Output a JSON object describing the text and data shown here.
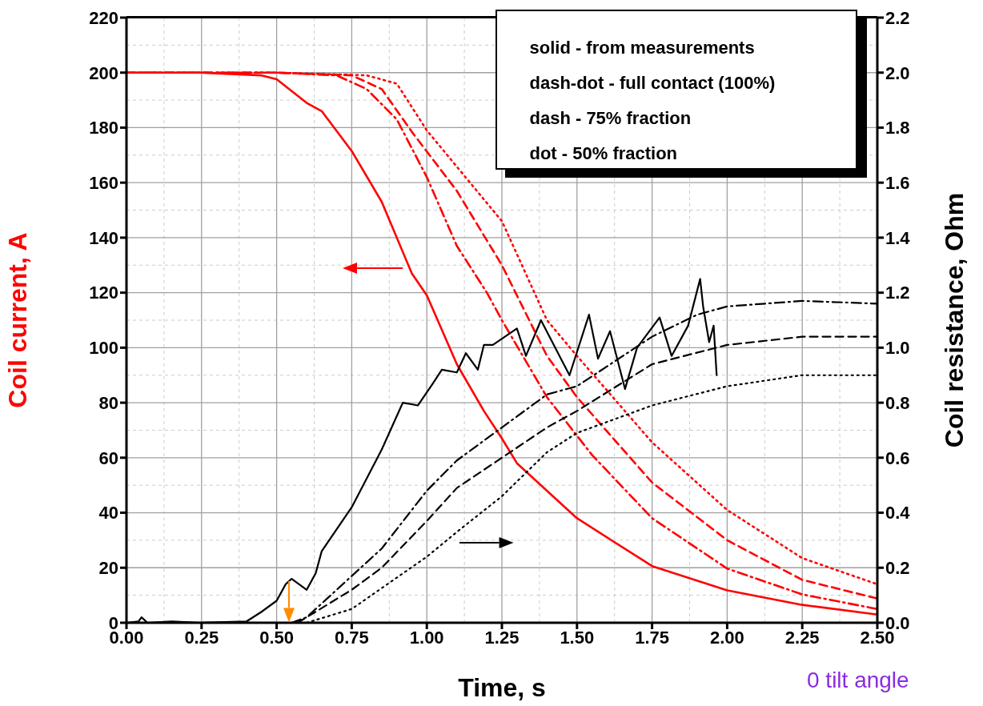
{
  "chart_data": {
    "type": "line",
    "xlabel": "Time,  s",
    "ylabel": "Coil current,  A",
    "y2label": "Coil resistance, Ohm",
    "xlim": [
      0,
      2.5
    ],
    "xticks": [
      {
        "value": 0,
        "label": "0.00"
      },
      {
        "value": 0.25,
        "label": "0.25"
      },
      {
        "value": 0.5,
        "label": "0.50"
      },
      {
        "value": 0.75,
        "label": "0.75"
      },
      {
        "value": 1,
        "label": "1.00"
      },
      {
        "value": 1.25,
        "label": "1.25"
      },
      {
        "value": 1.5,
        "label": "1.50"
      },
      {
        "value": 1.75,
        "label": "1.75"
      },
      {
        "value": 2,
        "label": "2.00"
      },
      {
        "value": 2.25,
        "label": "2.25"
      },
      {
        "value": 2.5,
        "label": "2.50"
      }
    ],
    "ylim": [
      0,
      220
    ],
    "yticks": [
      0,
      20,
      40,
      60,
      80,
      100,
      120,
      140,
      160,
      180,
      200,
      220
    ],
    "y2lim": [
      0,
      2.2
    ],
    "y2ticks": [
      {
        "value": 0,
        "label": "0.0"
      },
      {
        "value": 0.2,
        "label": "0.2"
      },
      {
        "value": 0.4,
        "label": "0.4"
      },
      {
        "value": 0.6,
        "label": "0.6"
      },
      {
        "value": 0.8,
        "label": "0.8"
      },
      {
        "value": 1,
        "label": "1.0"
      },
      {
        "value": 1.2,
        "label": "1.2"
      },
      {
        "value": 1.4,
        "label": "1.4"
      },
      {
        "value": 1.6,
        "label": "1.6"
      },
      {
        "value": 1.8,
        "label": "1.8"
      },
      {
        "value": 2,
        "label": "2.0"
      },
      {
        "value": 2.2,
        "label": "2.2"
      }
    ],
    "grid": true,
    "marker": "none",
    "annotations": [
      "solid -  from measurements",
      "dash-dot - full contact (100%)",
      "dash - 75% fraction",
      "dot - 50% fraction",
      "0 tilt angle"
    ],
    "series": [
      {
        "color": "#ff0000",
        "line_style": "solid",
        "x": [
          0,
          0.25,
          0.45,
          0.5,
          0.6,
          0.65,
          0.75,
          0.85,
          0.95,
          1.0,
          1.1,
          1.19,
          1.25,
          1.3,
          1.5,
          1.75,
          2.0,
          2.25,
          2.5
        ],
        "values": [
          200,
          200,
          199,
          197.6,
          189,
          186,
          171.5,
          153,
          127,
          119,
          94,
          77,
          67,
          58,
          38,
          20.6,
          11.8,
          6.5,
          3
        ]
      },
      {
        "color": "#ff0000",
        "line_style": "dashdot",
        "x": [
          0,
          0.5,
          0.7,
          0.8,
          0.9,
          1.0,
          1.1,
          1.2,
          1.25,
          1.4,
          1.55,
          1.75,
          2.0,
          2.25,
          2.5
        ],
        "values": [
          200,
          200,
          199,
          194,
          183,
          162,
          137,
          120,
          110,
          82,
          61,
          38,
          19.7,
          10.3,
          5
        ]
      },
      {
        "color": "#ff0000",
        "line_style": "dashed",
        "x": [
          0,
          0.5,
          0.75,
          0.85,
          0.95,
          1.1,
          1.25,
          1.4,
          1.5,
          1.75,
          2.0,
          2.25,
          2.5
        ],
        "values": [
          200,
          200,
          199,
          194,
          178.5,
          157,
          130,
          97,
          82,
          51,
          30,
          15.6,
          8.8
        ]
      },
      {
        "color": "#ff0000",
        "line_style": "dotted",
        "x": [
          0,
          0.5,
          0.8,
          0.9,
          1.0,
          1.25,
          1.4,
          1.5,
          1.75,
          2.0,
          2.25,
          2.5
        ],
        "values": [
          200,
          200,
          199,
          196,
          179,
          146,
          110,
          97,
          65.6,
          41,
          23.5,
          14
        ]
      },
      {
        "color": "#000000",
        "line_style": "solid",
        "axis": "y2",
        "x": [
          0,
          0.04,
          0.05,
          0.07,
          0.15,
          0.25,
          0.4,
          0.45,
          0.5,
          0.53,
          0.55,
          0.6,
          0.63,
          0.65,
          0.75,
          0.85,
          0.92,
          0.97,
          1.02,
          1.05,
          1.1,
          1.13,
          1.17,
          1.19,
          1.22,
          1.3,
          1.33,
          1.38,
          1.475,
          1.54,
          1.57,
          1.61,
          1.66,
          1.7,
          1.775,
          1.815,
          1.87,
          1.91,
          1.92,
          1.94,
          1.955,
          1.965
        ],
        "values": [
          0,
          0.005,
          0.02,
          0,
          0.005,
          0,
          0.005,
          0.04,
          0.08,
          0.14,
          0.16,
          0.12,
          0.18,
          0.26,
          0.42,
          0.63,
          0.8,
          0.79,
          0.87,
          0.92,
          0.91,
          0.98,
          0.92,
          1.01,
          1.01,
          1.07,
          0.97,
          1.1,
          0.9,
          1.12,
          0.96,
          1.06,
          0.85,
          1.0,
          1.11,
          0.97,
          1.08,
          1.25,
          1.15,
          1.02,
          1.08,
          0.9
        ]
      },
      {
        "color": "#000000",
        "line_style": "dashdot",
        "axis": "y2",
        "x": [
          0.55,
          0.6,
          0.75,
          0.85,
          1.0,
          1.1,
          1.25,
          1.4,
          1.5,
          1.75,
          1.9,
          2.0,
          2.25,
          2.5
        ],
        "values": [
          0,
          0.02,
          0.17,
          0.27,
          0.48,
          0.59,
          0.71,
          0.83,
          0.86,
          1.04,
          1.12,
          1.15,
          1.17,
          1.16
        ]
      },
      {
        "color": "#000000",
        "line_style": "dashed",
        "axis": "y2",
        "x": [
          0.57,
          0.75,
          0.85,
          1.0,
          1.1,
          1.25,
          1.4,
          1.5,
          1.75,
          2.0,
          2.25,
          2.5
        ],
        "values": [
          0,
          0.12,
          0.2,
          0.37,
          0.49,
          0.6,
          0.71,
          0.77,
          0.94,
          1.01,
          1.04,
          1.04
        ]
      },
      {
        "color": "#000000",
        "line_style": "dotted",
        "axis": "y2",
        "x": [
          0.6,
          0.75,
          1.0,
          1.1,
          1.25,
          1.4,
          1.5,
          1.75,
          2.0,
          2.25,
          2.5
        ],
        "values": [
          0,
          0.05,
          0.24,
          0.33,
          0.46,
          0.62,
          0.69,
          0.79,
          0.86,
          0.9,
          0.9
        ]
      }
    ]
  }
}
